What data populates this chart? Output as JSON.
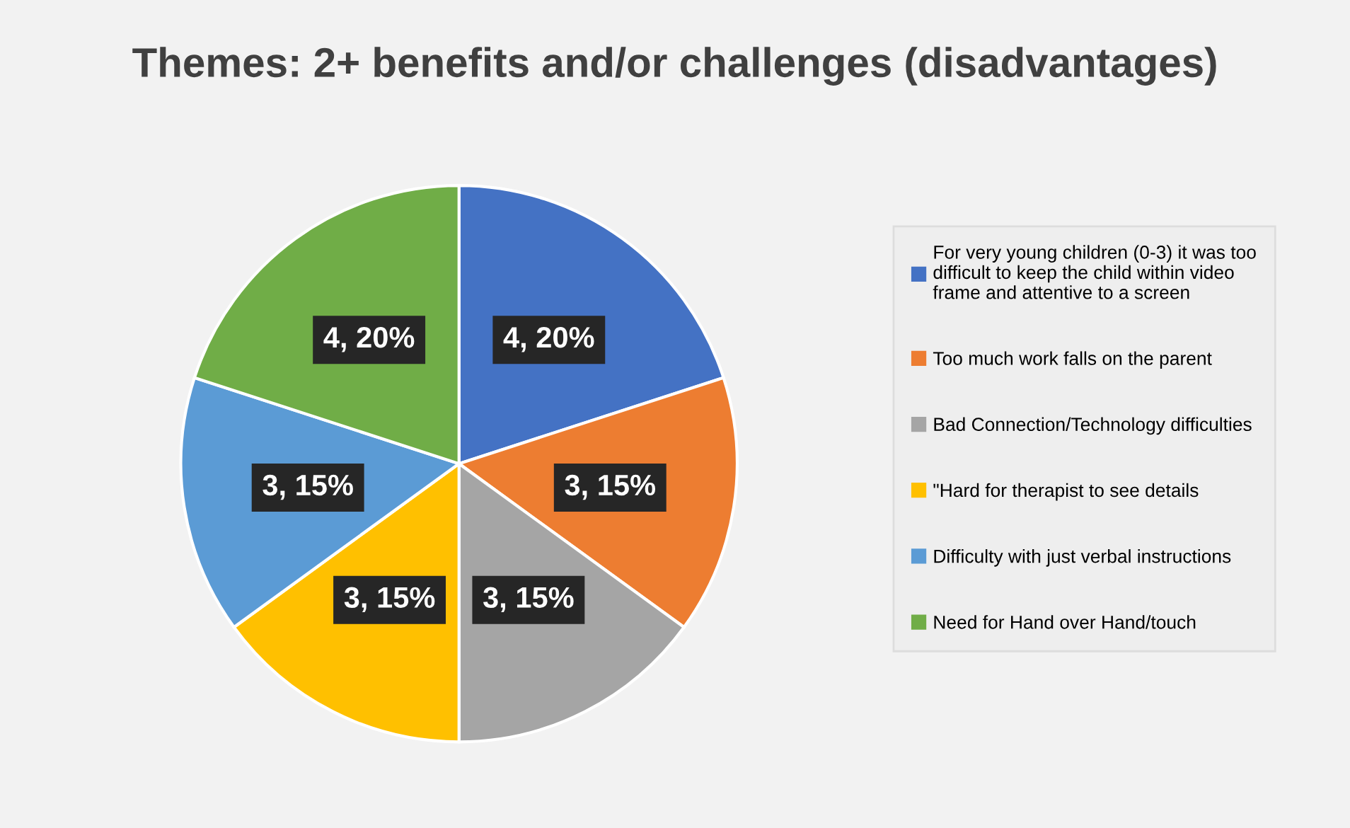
{
  "chart_data": {
    "type": "pie",
    "title": "Themes: 2+ benefits and/or challenges (disadvantages)",
    "categories": [
      "For very young children (0-3) it was too difficult to keep the child within video frame and attentive to a screen",
      "Too much work falls on the parent",
      "Bad Connection/Technology difficulties",
      "\"Hard for therapist to see details",
      "Difficulty with just verbal instructions",
      "Need for Hand over Hand/touch"
    ],
    "values": [
      4,
      3,
      3,
      3,
      3,
      4
    ],
    "value_labels": [
      "4, 20%",
      "3, 15%",
      "3, 15%",
      "3, 15%",
      "3, 15%",
      "4, 20%"
    ],
    "colors": [
      "#4472c4",
      "#ed7d31",
      "#a5a5a5",
      "#ffc000",
      "#5b9bd5",
      "#70ad47"
    ],
    "legend": "right"
  }
}
